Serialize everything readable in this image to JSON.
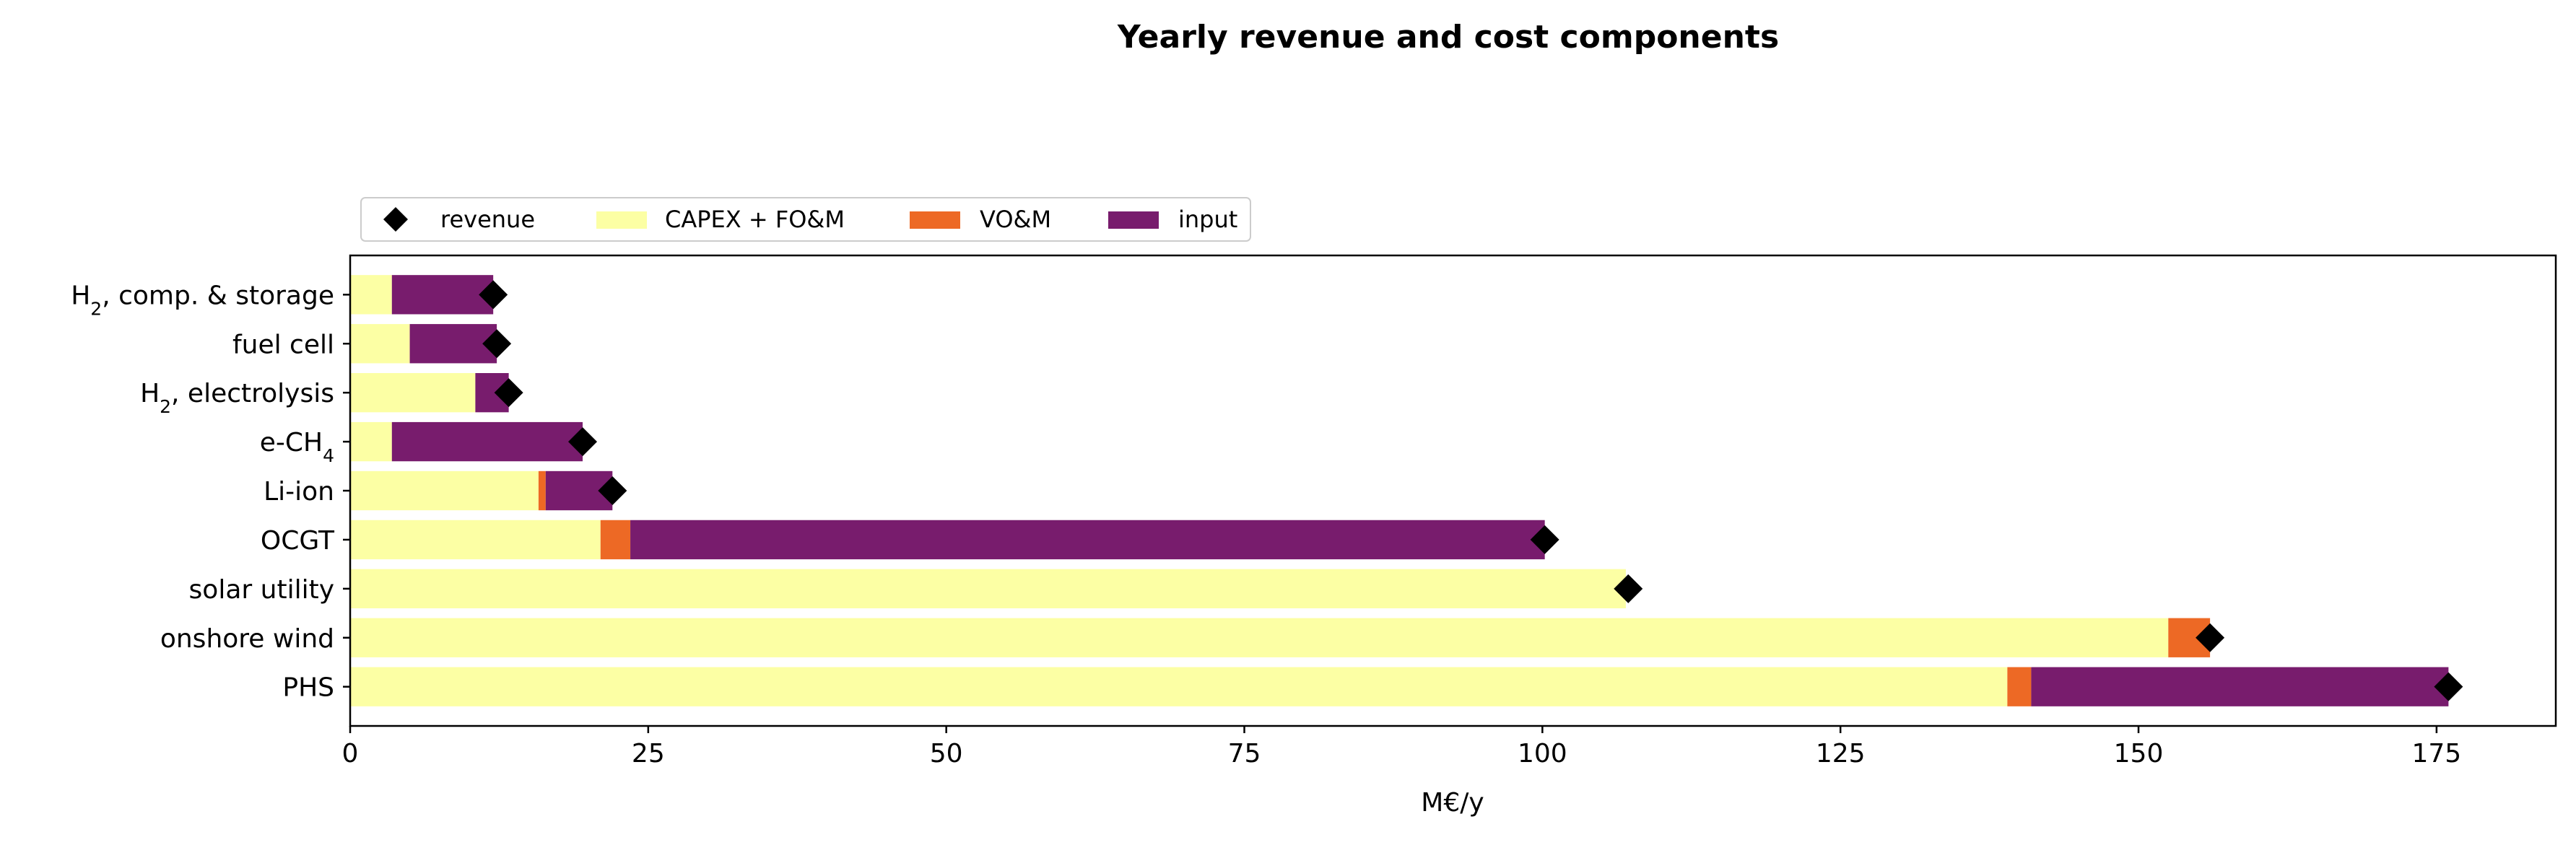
{
  "chart_data": {
    "type": "bar",
    "orientation": "horizontal",
    "stacked": true,
    "title": "Yearly revenue and cost components",
    "xlabel": "M€/y",
    "ylabel": "",
    "xlim": [
      0,
      185
    ],
    "xticks": [
      0,
      25,
      50,
      75,
      100,
      125,
      150,
      175
    ],
    "grid": false,
    "legend_position": "top-left",
    "categories": [
      {
        "base": "H",
        "sub": "2",
        "rest": ", comp. & storage"
      },
      {
        "base": "fuel cell",
        "sub": "",
        "rest": ""
      },
      {
        "base": "H",
        "sub": "2",
        "rest": ", electrolysis"
      },
      {
        "base": "e-CH",
        "sub": "4",
        "rest": ""
      },
      {
        "base": "Li-ion",
        "sub": "",
        "rest": ""
      },
      {
        "base": "OCGT",
        "sub": "",
        "rest": ""
      },
      {
        "base": "solar utility",
        "sub": "",
        "rest": ""
      },
      {
        "base": "onshore wind",
        "sub": "",
        "rest": ""
      },
      {
        "base": "PHS",
        "sub": "",
        "rest": ""
      }
    ],
    "series": [
      {
        "name": "CAPEX + FO&M",
        "color": "#fcffa4",
        "values": [
          3.5,
          5.0,
          10.5,
          3.5,
          15.8,
          21.0,
          107.0,
          152.5,
          139.0
        ]
      },
      {
        "name": "VO&M",
        "color": "#ed6925",
        "values": [
          0.0,
          0.0,
          0.0,
          0.0,
          0.6,
          2.5,
          0.0,
          3.5,
          2.0
        ]
      },
      {
        "name": "input",
        "color": "#781c6d",
        "values": [
          8.5,
          7.3,
          2.8,
          16.0,
          5.6,
          76.7,
          0.0,
          0.0,
          35.0
        ]
      }
    ],
    "revenue": {
      "name": "revenue",
      "color": "#000000",
      "values": [
        12.0,
        12.3,
        13.3,
        19.5,
        22.0,
        100.2,
        107.2,
        156.0,
        176.0
      ]
    },
    "legend_order": [
      "revenue",
      "CAPEX + FO&M",
      "VO&M",
      "input"
    ]
  }
}
